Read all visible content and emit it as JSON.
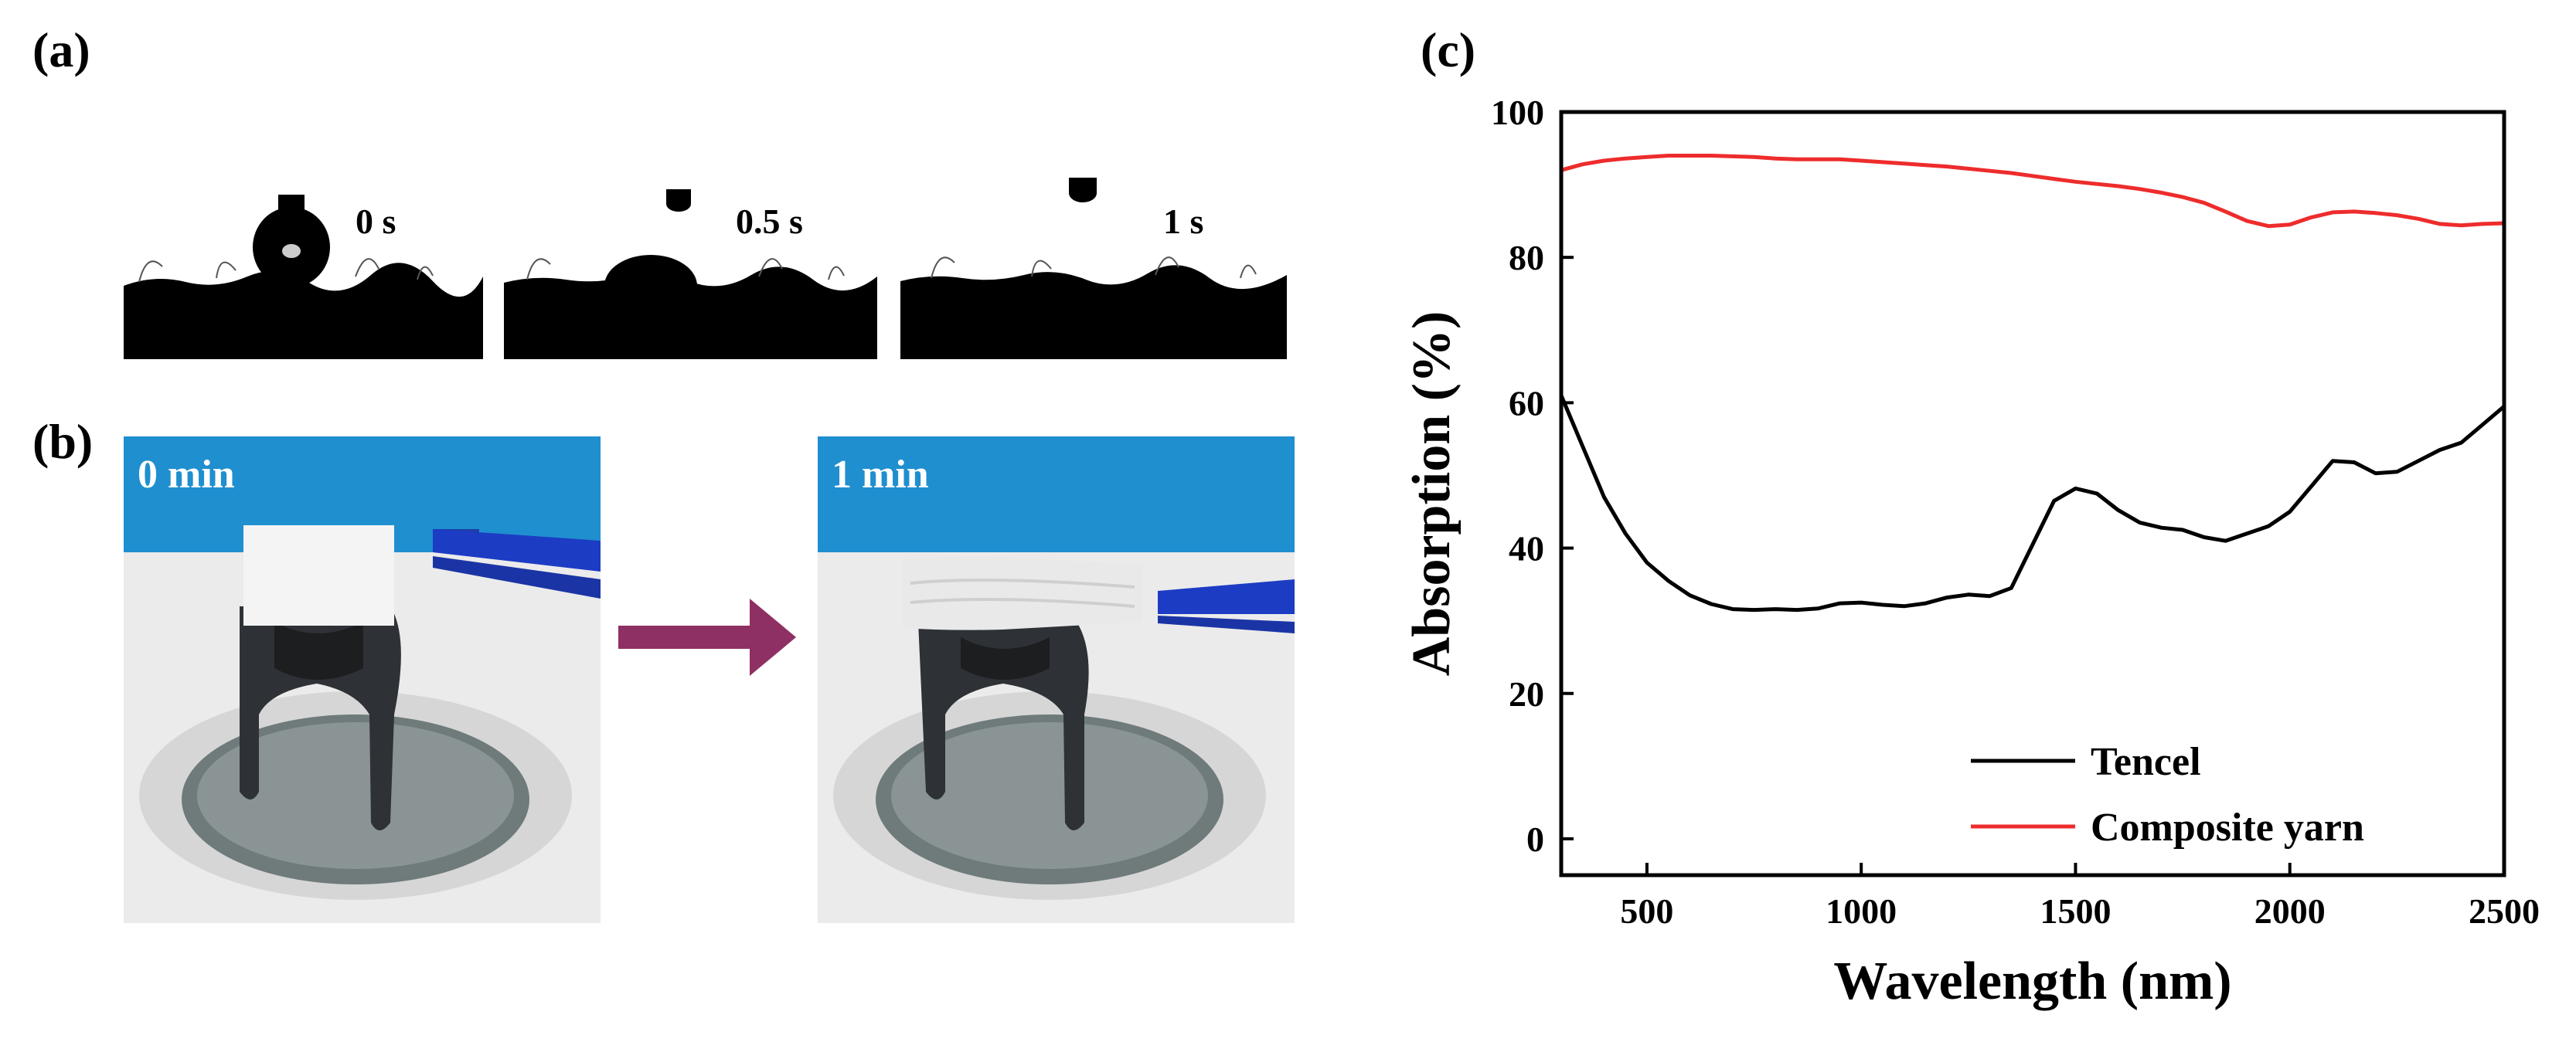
{
  "panels": {
    "a": {
      "label": "(a)",
      "times": [
        "0 s",
        "0.5 s",
        "1 s"
      ]
    },
    "b": {
      "label": "(b)",
      "times": [
        "0 min",
        "1 min"
      ]
    },
    "c": {
      "label": "(c)"
    }
  },
  "colors": {
    "arrow": "#8e3063",
    "sky": "#1f8fcf",
    "tencel": "#000000",
    "composite": "#ee2c2c"
  },
  "chart_data": {
    "type": "line",
    "xlabel": "Wavelength (nm)",
    "ylabel": "Absorption (%)",
    "xlim": [
      300,
      2500
    ],
    "ylim": [
      -5,
      100
    ],
    "xticks": [
      500,
      1000,
      1500,
      2000,
      2500
    ],
    "yticks": [
      0,
      20,
      40,
      60,
      80,
      100
    ],
    "legend_position": "bottom-right",
    "series": [
      {
        "name": "Tencel",
        "color": "#000000",
        "x": [
          300,
          350,
          400,
          450,
          500,
          550,
          600,
          650,
          700,
          750,
          800,
          850,
          900,
          950,
          1000,
          1050,
          1100,
          1150,
          1200,
          1250,
          1300,
          1350,
          1400,
          1450,
          1500,
          1550,
          1600,
          1650,
          1700,
          1750,
          1800,
          1850,
          1900,
          1950,
          2000,
          2050,
          2100,
          2150,
          2200,
          2250,
          2300,
          2350,
          2400,
          2450,
          2500
        ],
        "y": [
          61,
          54,
          47,
          42,
          38,
          35.5,
          33.5,
          32.3,
          31.6,
          31.5,
          31.6,
          31.5,
          31.7,
          32.4,
          32.5,
          32.2,
          32.0,
          32.4,
          33.2,
          33.6,
          33.4,
          34.5,
          40.5,
          46.5,
          48.2,
          47.5,
          45.2,
          43.5,
          42.8,
          42.5,
          41.5,
          41.0,
          42.0,
          43.0,
          45.0,
          48.5,
          52.0,
          51.8,
          50.3,
          50.5,
          52.0,
          53.5,
          54.5,
          57.0,
          59.5
        ]
      },
      {
        "name": "Composite yarn",
        "color": "#ee2c2c",
        "x": [
          300,
          350,
          400,
          450,
          500,
          550,
          600,
          650,
          700,
          750,
          800,
          850,
          900,
          950,
          1000,
          1050,
          1100,
          1150,
          1200,
          1250,
          1300,
          1350,
          1400,
          1450,
          1500,
          1550,
          1600,
          1650,
          1700,
          1750,
          1800,
          1850,
          1900,
          1950,
          2000,
          2050,
          2100,
          2150,
          2200,
          2250,
          2300,
          2350,
          2400,
          2450,
          2500
        ],
        "y": [
          92,
          92.8,
          93.3,
          93.6,
          93.8,
          94.0,
          94.0,
          94.0,
          93.9,
          93.8,
          93.6,
          93.5,
          93.5,
          93.5,
          93.3,
          93.1,
          92.9,
          92.7,
          92.5,
          92.2,
          91.9,
          91.6,
          91.2,
          90.8,
          90.4,
          90.1,
          89.8,
          89.4,
          88.9,
          88.3,
          87.5,
          86.3,
          85.0,
          84.3,
          84.5,
          85.5,
          86.2,
          86.3,
          86.1,
          85.8,
          85.3,
          84.6,
          84.4,
          84.6,
          84.7
        ]
      }
    ]
  }
}
